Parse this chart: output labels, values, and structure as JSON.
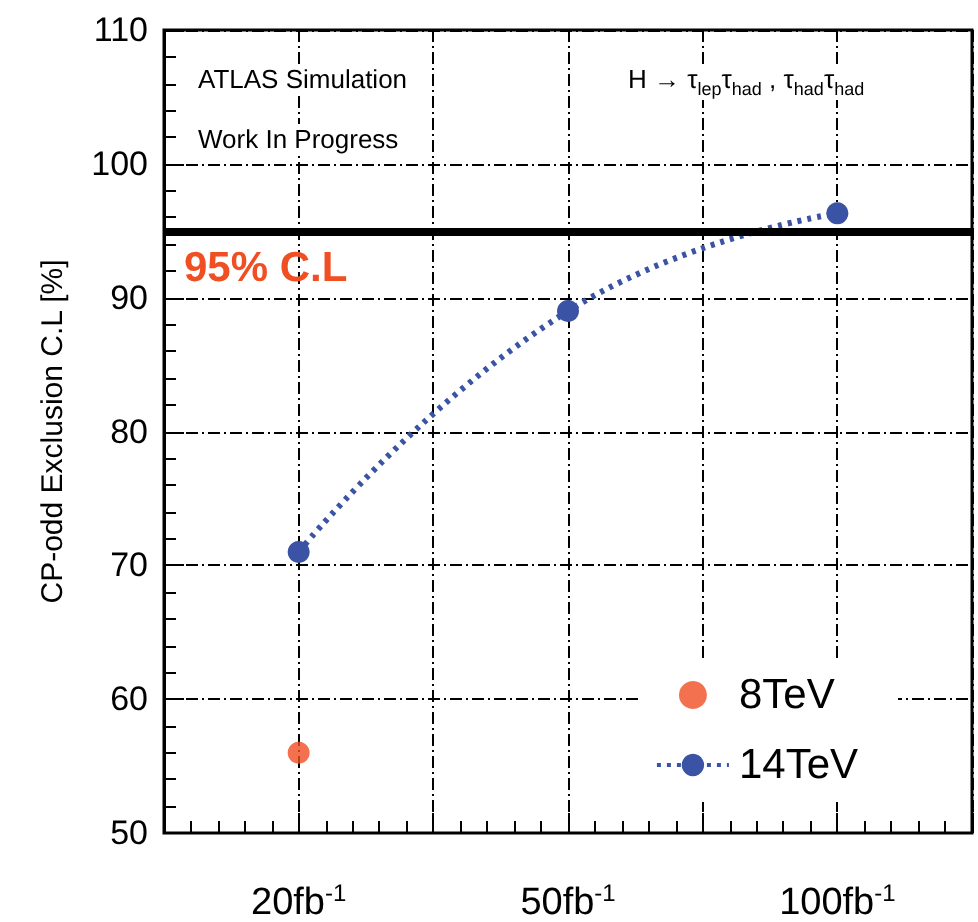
{
  "chart_data": {
    "type": "line",
    "ylabel": "CP-odd Exclusion C.L [%]",
    "categories": [
      "20fb$^{-1}$",
      "50fb$^{-1}$",
      "100fb$^{-1}$"
    ],
    "series": [
      {
        "name": "8TeV",
        "type": "scatter",
        "color": "#f04e23",
        "values": [
          56,
          null,
          null
        ]
      },
      {
        "name": "14TeV",
        "type": "line",
        "color": "#3a53a4",
        "values": [
          71,
          89,
          96.3
        ],
        "line_style": "dotted"
      }
    ],
    "ylim": [
      50,
      110
    ],
    "yticks": [
      50,
      60,
      70,
      80,
      90,
      100,
      110
    ],
    "ref_lines": [
      {
        "axis": "y",
        "value": 95,
        "label": "95% C.L",
        "color": "#000000"
      }
    ],
    "annotations": [
      "ATLAS Simulation",
      "Work In Progress",
      "H → τ$_{lep}$τ$_{had}$ , τ$_{had}$τ$_{had}$"
    ],
    "grid": true,
    "legend": "bottom right",
    "marker": "circle"
  }
}
